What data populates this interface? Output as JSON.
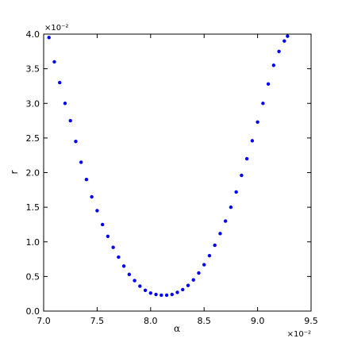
{
  "chart_data": {
    "type": "scatter",
    "xlabel": "α",
    "ylabel": "r",
    "x_offset_label": "×10⁻²",
    "y_offset_label": "×10⁻²",
    "xlim": [
      7.0,
      9.5
    ],
    "ylim": [
      0.0,
      4.0
    ],
    "x_ticks": [
      "7.0",
      "7.5",
      "8.0",
      "8.5",
      "9.0",
      "9.5"
    ],
    "y_ticks": [
      "0.0",
      "0.5",
      "1.0",
      "1.5",
      "2.0",
      "2.5",
      "3.0",
      "3.5",
      "4.0"
    ],
    "grid": false,
    "marker_color": "#0000ff",
    "series": [
      {
        "x": [
          7.05,
          7.1,
          7.15,
          7.2,
          7.25,
          7.3,
          7.35,
          7.4,
          7.45,
          7.5,
          7.55,
          7.6,
          7.65,
          7.7,
          7.75,
          7.8,
          7.85,
          7.9,
          7.95,
          8.0,
          8.05,
          8.1,
          8.15,
          8.2,
          8.25,
          8.3,
          8.35,
          8.4,
          8.45,
          8.5,
          8.55,
          8.6,
          8.65,
          8.7,
          8.75,
          8.8,
          8.85,
          8.9,
          8.95,
          9.0,
          9.05,
          9.1,
          9.15,
          9.2,
          9.25,
          9.28
        ],
        "y": [
          3.95,
          3.6,
          3.3,
          3.0,
          2.75,
          2.45,
          2.15,
          1.9,
          1.65,
          1.45,
          1.25,
          1.08,
          0.92,
          0.78,
          0.65,
          0.53,
          0.44,
          0.36,
          0.3,
          0.26,
          0.24,
          0.23,
          0.23,
          0.24,
          0.27,
          0.31,
          0.37,
          0.45,
          0.55,
          0.67,
          0.8,
          0.95,
          1.12,
          1.3,
          1.5,
          1.72,
          1.96,
          2.2,
          2.46,
          2.73,
          3.0,
          3.28,
          3.55,
          3.75,
          3.9,
          3.97
        ]
      }
    ]
  }
}
